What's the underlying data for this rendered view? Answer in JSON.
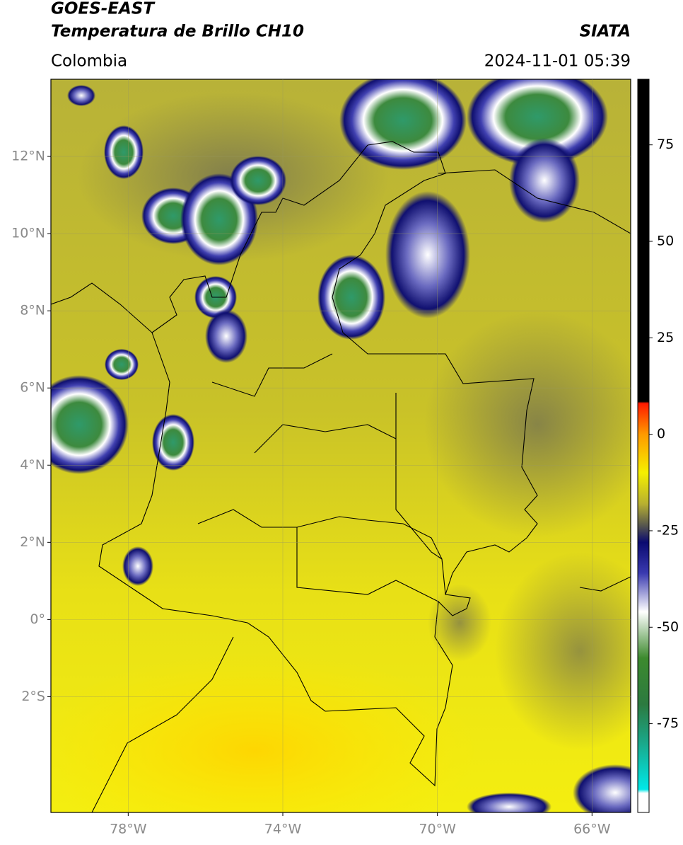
{
  "header": {
    "title": "GOES-EAST",
    "subtitle": "Temperatura de Brillo CH10",
    "source": "SIATA",
    "region": "Colombia",
    "datetime": "2024-11-01 05:39"
  },
  "map": {
    "lonlim": [
      -80,
      -65
    ],
    "latlim": [
      -5,
      14
    ],
    "grid": true,
    "lon_ticks": [
      {
        "value": -78,
        "label": "78°W"
      },
      {
        "value": -74,
        "label": "74°W"
      },
      {
        "value": -70,
        "label": "70°W"
      },
      {
        "value": -66,
        "label": "66°W"
      }
    ],
    "lat_ticks": [
      {
        "value": 12,
        "label": "12°N"
      },
      {
        "value": 10,
        "label": "10°N"
      },
      {
        "value": 8,
        "label": "8°N"
      },
      {
        "value": 6,
        "label": "6°N"
      },
      {
        "value": 4,
        "label": "4°N"
      },
      {
        "value": 2,
        "label": "2°N"
      },
      {
        "value": 0,
        "label": "0°"
      },
      {
        "value": -2,
        "label": "2°S"
      }
    ]
  },
  "colorbar": {
    "lim": [
      -98,
      92
    ],
    "ticks": [
      75,
      50,
      25,
      0,
      -25,
      -50,
      -75
    ],
    "stops": [
      {
        "value": 92,
        "color": "#000000"
      },
      {
        "value": 8.5,
        "color": "#000000"
      },
      {
        "value": 8,
        "color": "#ff1a00"
      },
      {
        "value": 0,
        "color": "#ff9a00"
      },
      {
        "value": -10,
        "color": "#f5f000"
      },
      {
        "value": -18,
        "color": "#b8b030"
      },
      {
        "value": -24,
        "color": "#505050"
      },
      {
        "value": -28,
        "color": "#0a0a70"
      },
      {
        "value": -36,
        "color": "#3a3ab0"
      },
      {
        "value": -46,
        "color": "#ffffff"
      },
      {
        "value": -58,
        "color": "#3d8a2e"
      },
      {
        "value": -70,
        "color": "#2c7a40"
      },
      {
        "value": -80,
        "color": "#1aa88a"
      },
      {
        "value": -92,
        "color": "#00e8e8"
      },
      {
        "value": -93,
        "color": "#ffffff"
      },
      {
        "value": -98,
        "color": "#ffffff"
      }
    ]
  }
}
